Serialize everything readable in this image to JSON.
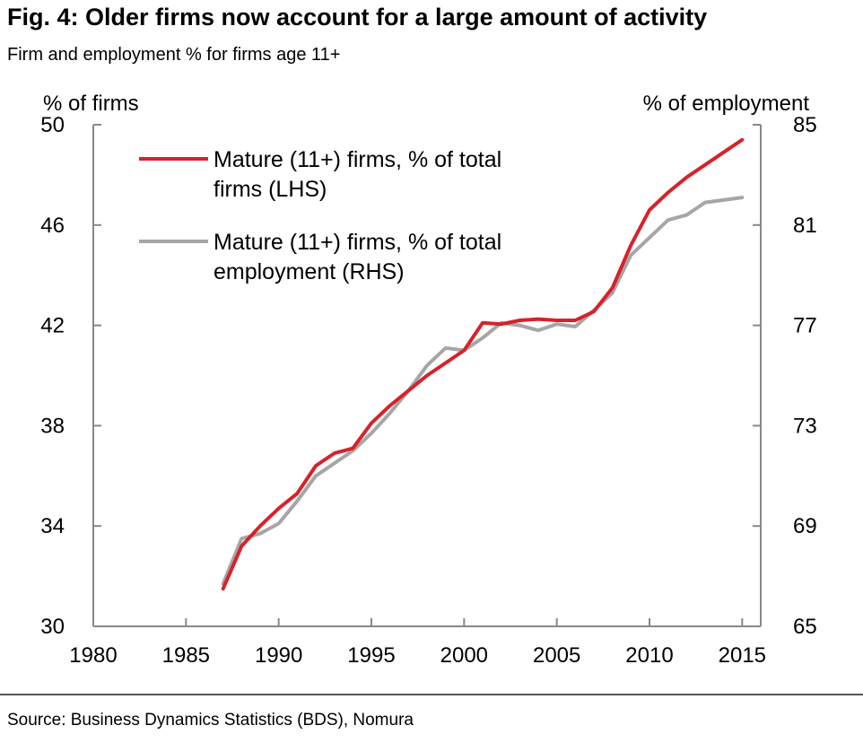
{
  "title": "Fig. 4: Older firms now account for a large amount of activity",
  "subtitle": "Firm and employment % for firms age 11+",
  "source": "Source: Business Dynamics Statistics (BDS), Nomura",
  "colors": {
    "firms": "#d7222a",
    "employment": "#a6a6a6",
    "axis": "#888888"
  },
  "chart_data": {
    "type": "line",
    "ylabel_left": "% of firms",
    "ylabel_right": "% of employment",
    "xlim": [
      1980,
      2016
    ],
    "ylim_left": [
      30,
      50
    ],
    "ylim_right": [
      65,
      85
    ],
    "x_ticks": [
      1980,
      1985,
      1990,
      1995,
      2000,
      2005,
      2010,
      2015
    ],
    "y_ticks_left": [
      30,
      34,
      38,
      42,
      46,
      50
    ],
    "y_ticks_right": [
      65,
      69,
      73,
      77,
      81,
      85
    ],
    "grid": false,
    "legend_position": "top-left",
    "series": [
      {
        "name": "Mature (11+) firms, % of total firms (LHS)",
        "legend_lines": [
          "Mature (11+) firms, % of total",
          "firms (LHS)"
        ],
        "axis": "left",
        "color": "#d7222a",
        "x": [
          1987,
          1988,
          1989,
          1990,
          1991,
          1992,
          1993,
          1994,
          1995,
          1996,
          1997,
          1998,
          1999,
          2000,
          2001,
          2002,
          2003,
          2004,
          2005,
          2006,
          2007,
          2008,
          2009,
          2010,
          2011,
          2012,
          2013,
          2014,
          2015
        ],
        "y": [
          31.5,
          33.2,
          34.0,
          34.7,
          35.3,
          36.4,
          36.9,
          37.1,
          38.1,
          38.8,
          39.4,
          40.0,
          40.5,
          41.0,
          42.1,
          42.05,
          42.2,
          42.25,
          42.2,
          42.2,
          42.55,
          43.5,
          45.2,
          46.6,
          47.3,
          47.9,
          48.4,
          48.9,
          49.4
        ]
      },
      {
        "name": "Mature (11+) firms, % of total employment (RHS)",
        "legend_lines": [
          "Mature (11+) firms, % of total",
          "employment (RHS)"
        ],
        "axis": "right",
        "color": "#a6a6a6",
        "x": [
          1987,
          1988,
          1989,
          1990,
          1991,
          1992,
          1993,
          1994,
          1995,
          1996,
          1997,
          1998,
          1999,
          2000,
          2001,
          2002,
          2003,
          2004,
          2005,
          2006,
          2007,
          2008,
          2009,
          2010,
          2011,
          2012,
          2013,
          2014,
          2015
        ],
        "y": [
          66.7,
          68.5,
          68.7,
          69.1,
          70.0,
          71.0,
          71.5,
          72.0,
          72.7,
          73.5,
          74.4,
          75.4,
          76.1,
          76.0,
          76.5,
          77.1,
          77.0,
          76.8,
          77.05,
          76.95,
          77.6,
          78.3,
          79.8,
          80.5,
          81.2,
          81.4,
          81.9,
          82.0,
          82.1
        ]
      }
    ]
  }
}
